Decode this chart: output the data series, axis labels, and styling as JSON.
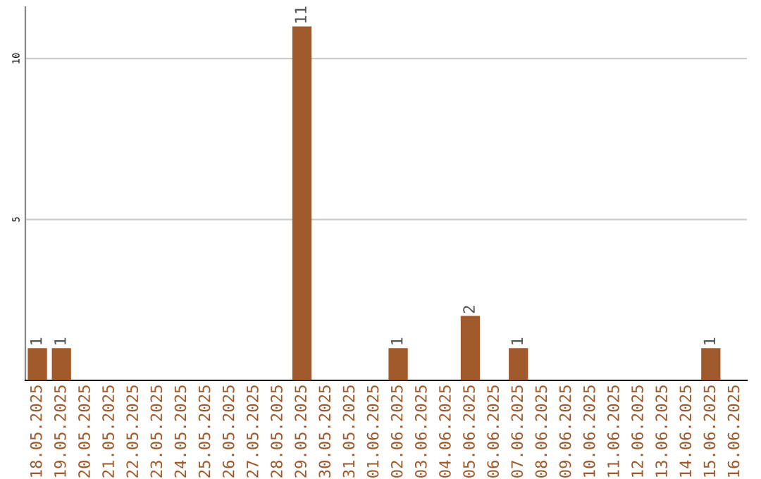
{
  "chart_data": {
    "type": "bar",
    "categories": [
      "18.05.2025",
      "19.05.2025",
      "20.05.2025",
      "21.05.2025",
      "22.05.2025",
      "23.05.2025",
      "24.05.2025",
      "25.05.2025",
      "26.05.2025",
      "27.05.2025",
      "28.05.2025",
      "29.05.2025",
      "30.05.2025",
      "31.05.2025",
      "01.06.2025",
      "02.06.2025",
      "03.06.2025",
      "04.06.2025",
      "05.06.2025",
      "06.06.2025",
      "07.06.2025",
      "08.06.2025",
      "09.06.2025",
      "10.06.2025",
      "11.06.2025",
      "12.06.2025",
      "13.06.2025",
      "14.06.2025",
      "15.06.2025",
      "16.06.2025"
    ],
    "values": [
      1,
      1,
      0,
      0,
      0,
      0,
      0,
      0,
      0,
      0,
      0,
      11,
      0,
      0,
      0,
      1,
      0,
      0,
      2,
      0,
      1,
      0,
      0,
      0,
      0,
      0,
      0,
      0,
      1,
      0
    ],
    "value_labels": [
      "1",
      "1",
      null,
      null,
      null,
      null,
      null,
      null,
      null,
      null,
      null,
      "11",
      null,
      null,
      null,
      "1",
      null,
      null,
      "2",
      null,
      "1",
      null,
      null,
      null,
      null,
      null,
      null,
      null,
      "1",
      null
    ],
    "color": "#a0592a",
    "ylim": [
      0,
      11.6
    ],
    "yticks": [
      5,
      10
    ],
    "grid": "y"
  }
}
